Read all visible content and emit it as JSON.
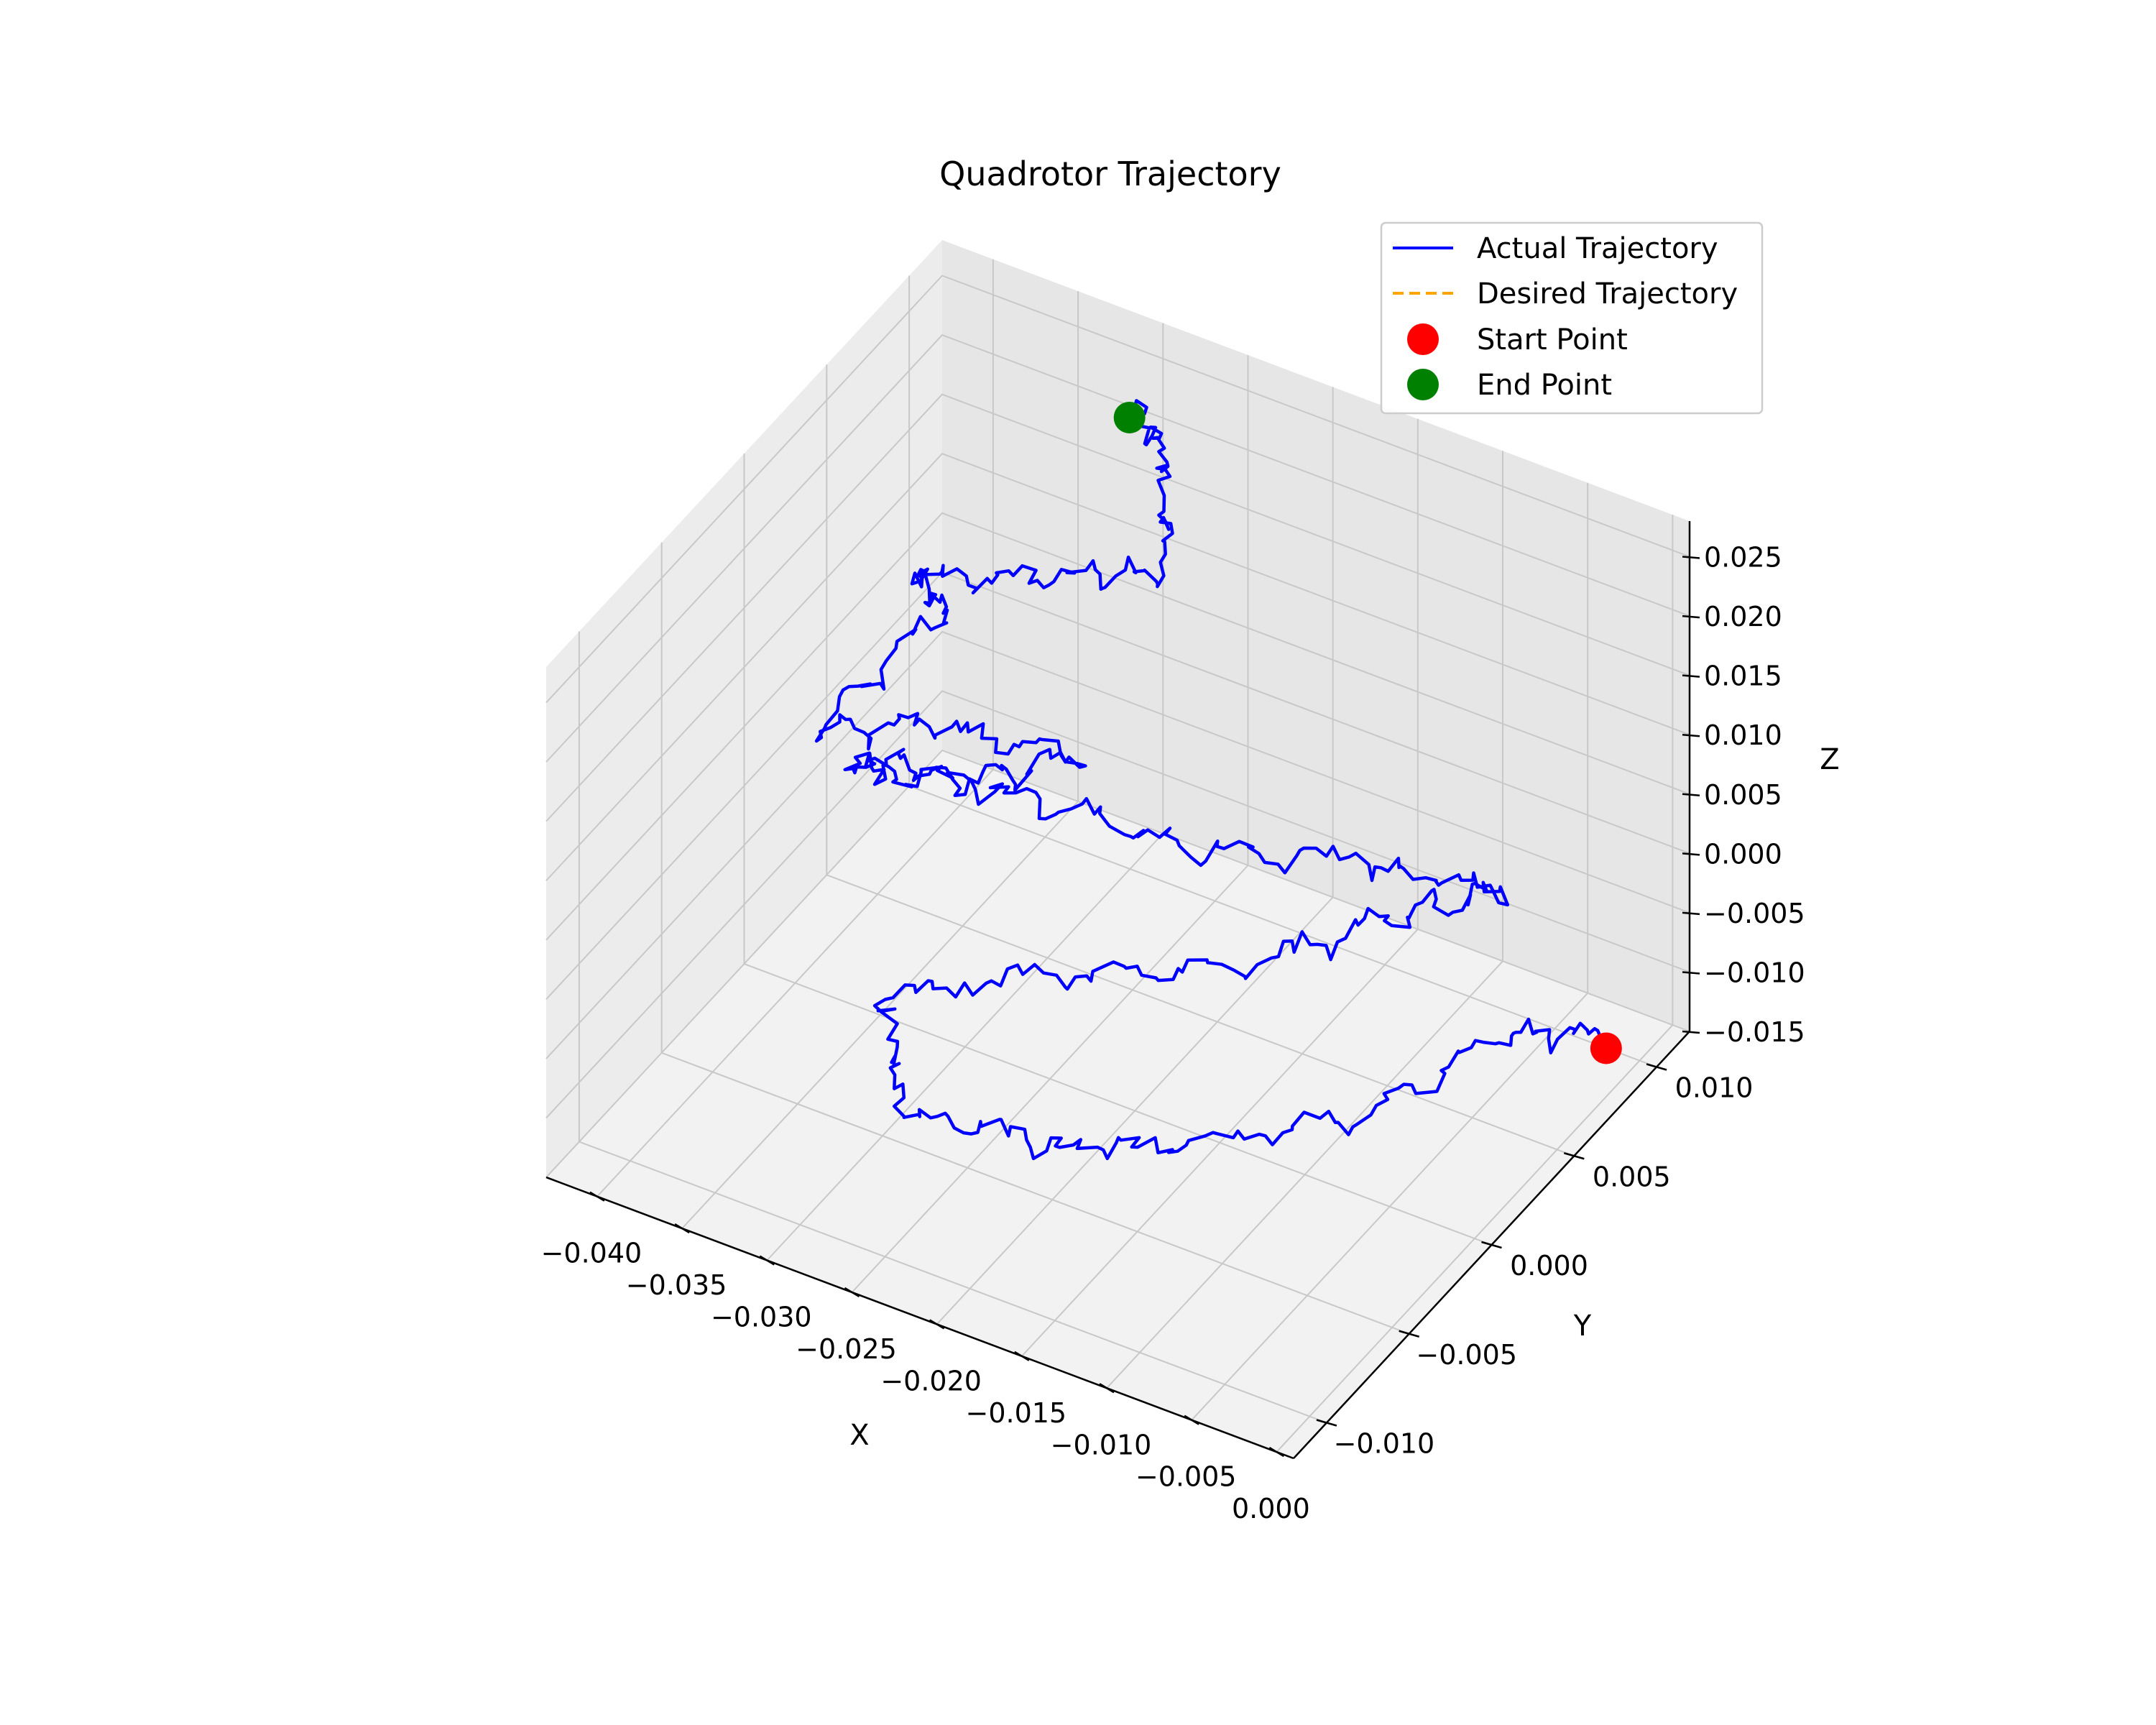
{
  "chart_data": {
    "type": "line3d",
    "title": "Quadrotor Trajectory",
    "xlabel": "X",
    "ylabel": "Y",
    "zlabel": "Z",
    "xlim": [
      -0.043,
      0.001
    ],
    "ylim": [
      -0.012,
      0.012
    ],
    "zlim": [
      -0.015,
      0.028
    ],
    "x_ticks": [
      "−0.040",
      "−0.035",
      "−0.030",
      "−0.025",
      "−0.020",
      "−0.015",
      "−0.010",
      "−0.005",
      "0.000"
    ],
    "x_tick_values": [
      -0.04,
      -0.035,
      -0.03,
      -0.025,
      -0.02,
      -0.015,
      -0.01,
      -0.005,
      0.0
    ],
    "y_ticks": [
      "−0.010",
      "−0.005",
      "0.000",
      "0.005",
      "0.010"
    ],
    "y_tick_values": [
      -0.01,
      -0.005,
      0.0,
      0.005,
      0.01
    ],
    "z_ticks": [
      "−0.015",
      "−0.010",
      "−0.005",
      "0.000",
      "0.005",
      "0.010",
      "0.015",
      "0.020",
      "0.025"
    ],
    "z_tick_values": [
      -0.015,
      -0.01,
      -0.005,
      0.0,
      0.005,
      0.01,
      0.015,
      0.02,
      0.025
    ],
    "legend_position": "top-right",
    "series": [
      {
        "name": "Actual Trajectory",
        "color": "#0000ff",
        "style": "solid"
      },
      {
        "name": "Desired Trajectory",
        "color": "#ffa500",
        "style": "dashed"
      },
      {
        "name": "Start Point",
        "color": "#ff0000",
        "style": "marker"
      },
      {
        "name": "End Point",
        "color": "#008000",
        "style": "marker"
      }
    ],
    "start_point": {
      "x": -0.001,
      "y": 0.009,
      "z": -0.013
    },
    "end_point": {
      "x": -0.031,
      "y": 0.011,
      "z": 0.021
    }
  }
}
